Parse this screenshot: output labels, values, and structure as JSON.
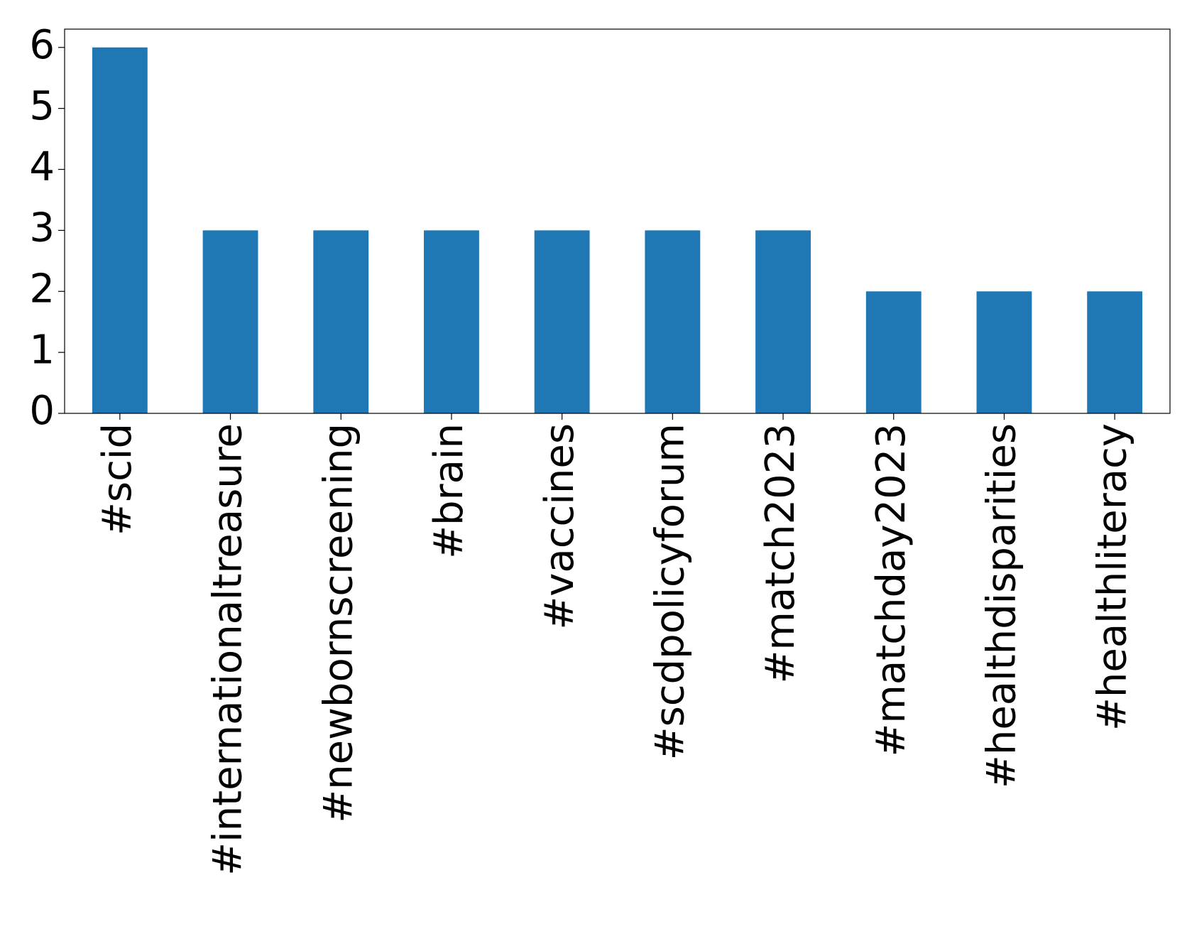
{
  "chart_data": {
    "type": "bar",
    "categories": [
      "#scid",
      "#internationaltreasure",
      "#newbornscreening",
      "#brain",
      "#vaccines",
      "#scdpolicyforum",
      "#match2023",
      "#matchday2023",
      "#healthdisparities",
      "#healthliteracy"
    ],
    "values": [
      6,
      3,
      3,
      3,
      3,
      3,
      3,
      2,
      2,
      2
    ],
    "color": "#1f77b4",
    "ylim": [
      0,
      6.3
    ],
    "yticks": [
      0,
      1,
      2,
      3,
      4,
      5,
      6
    ],
    "grid": false
  }
}
